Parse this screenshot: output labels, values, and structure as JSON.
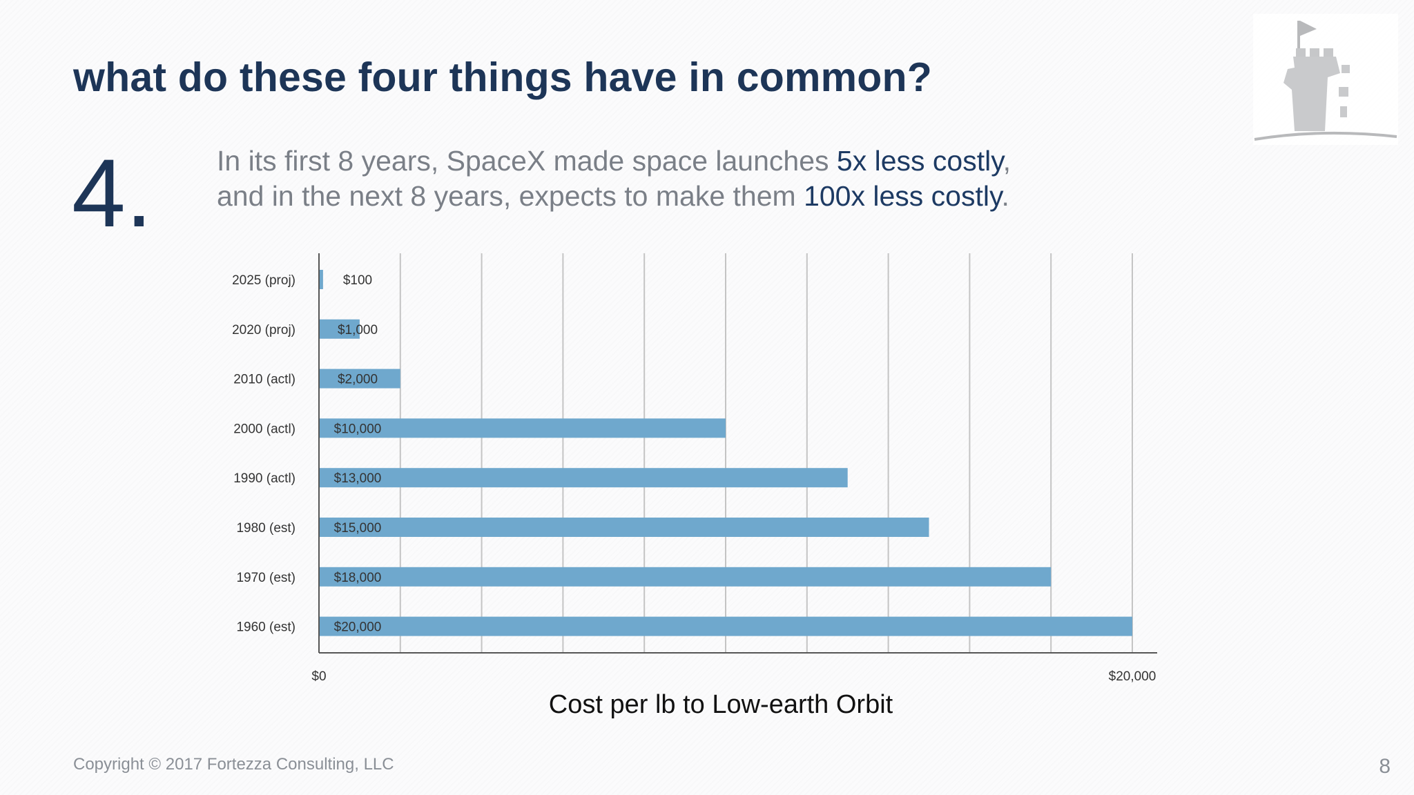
{
  "slide": {
    "title": "what do these four things have in common?",
    "number": "4.",
    "subtitle": {
      "line1_pre": "In its first 8 years, SpaceX made space launches ",
      "line1_hl": "5x less costly",
      "line1_post": ",",
      "line2_pre": "and in the next 8 years, expects to make them ",
      "line2_hl": "100x less costly",
      "line2_post": "."
    },
    "copyright": "Copyright  © 2017 Fortezza Consulting, LLC",
    "page_number": "8"
  },
  "colors": {
    "title": "#1d3557",
    "bar": "#6fa8cd",
    "gridline": "#c4c4c4",
    "text_gray": "#7a7f87"
  },
  "logo": {
    "icon": "castle-tower-flag-icon"
  },
  "chart_data": {
    "type": "bar",
    "orientation": "horizontal",
    "categories": [
      "2025 (proj)",
      "2020 (proj)",
      "2010 (actl)",
      "2000 (actl)",
      "1990 (actl)",
      "1980 (est)",
      "1970 (est)",
      "1960 (est)"
    ],
    "values": [
      100,
      1000,
      2000,
      10000,
      13000,
      15000,
      18000,
      20000
    ],
    "data_labels": [
      "$100",
      "$1,000",
      "$2,000",
      "$10,000",
      "$13,000",
      "$15,000",
      "$18,000",
      "$20,000"
    ],
    "xlim": [
      0,
      20000
    ],
    "x_ticks": [
      0,
      20000
    ],
    "x_tick_labels": [
      "$0",
      "$20,000"
    ],
    "xlabel": "Cost per lb to Low-earth Orbit",
    "grid": true,
    "gridline_step": 2000
  }
}
